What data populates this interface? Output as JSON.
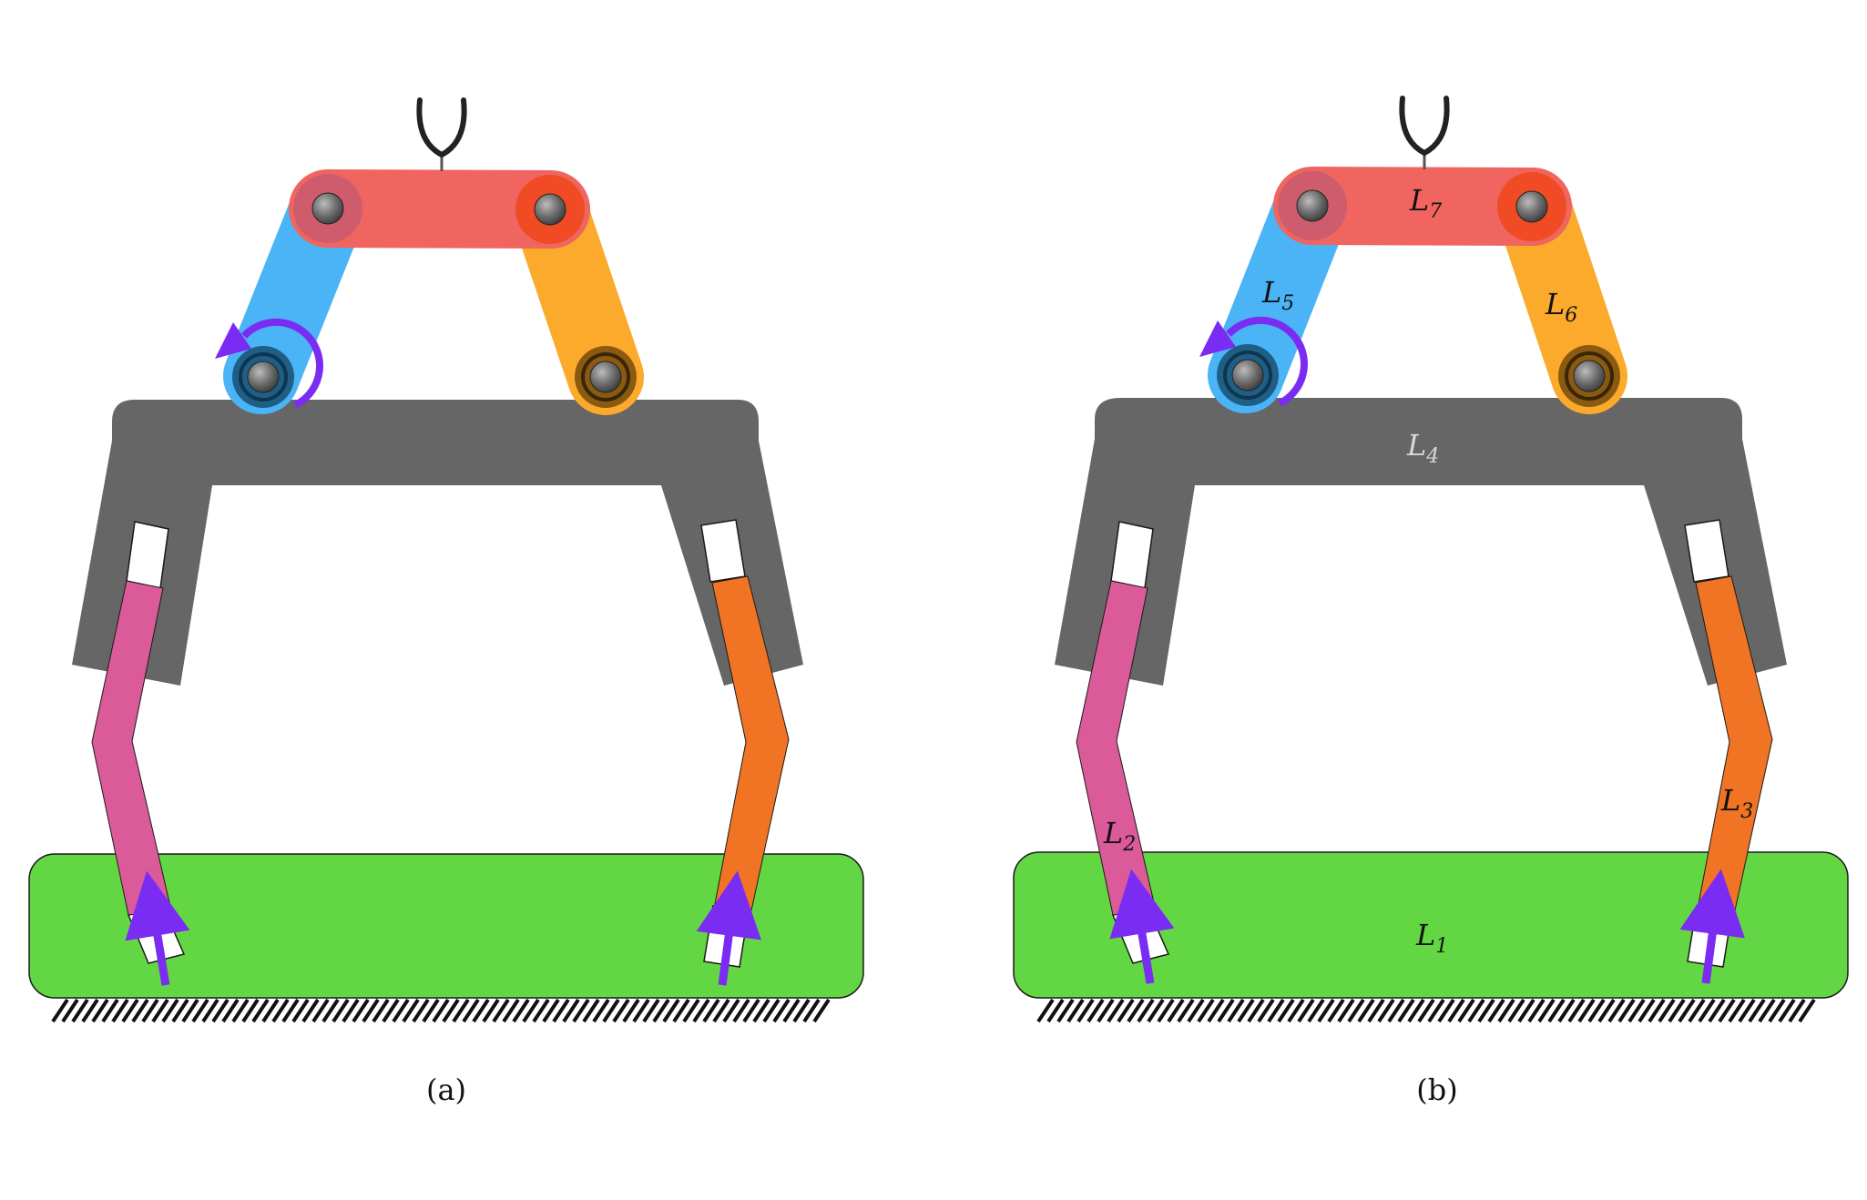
{
  "panels": [
    {
      "id": "a",
      "caption": "(a)",
      "labels": null
    },
    {
      "id": "b",
      "caption": "(b)",
      "labels": {
        "L1": {
          "main": "L",
          "sub": "1"
        },
        "L2": {
          "main": "L",
          "sub": "2"
        },
        "L3": {
          "main": "L",
          "sub": "3"
        },
        "L4": {
          "main": "L",
          "sub": "4"
        },
        "L5": {
          "main": "L",
          "sub": "5"
        },
        "L6": {
          "main": "L",
          "sub": "6"
        },
        "L7": {
          "main": "L",
          "sub": "7"
        }
      }
    }
  ],
  "colors": {
    "base": "#63d743",
    "frame": "#666666",
    "leg_left": "#db5a9a",
    "leg_right": "#f07423",
    "link_blue": "#4ab4f7",
    "link_orange": "#fbaa2c",
    "link_red": "#f0655f",
    "actuator": "#7a2cf2",
    "joint": "#6e6e6e"
  },
  "icons": {
    "gripper": "gripper-icon",
    "rotary_actuator": "rotation-arrow-icon",
    "linear_actuator": "up-arrow-icon",
    "ground": "ground-hatch-icon"
  }
}
